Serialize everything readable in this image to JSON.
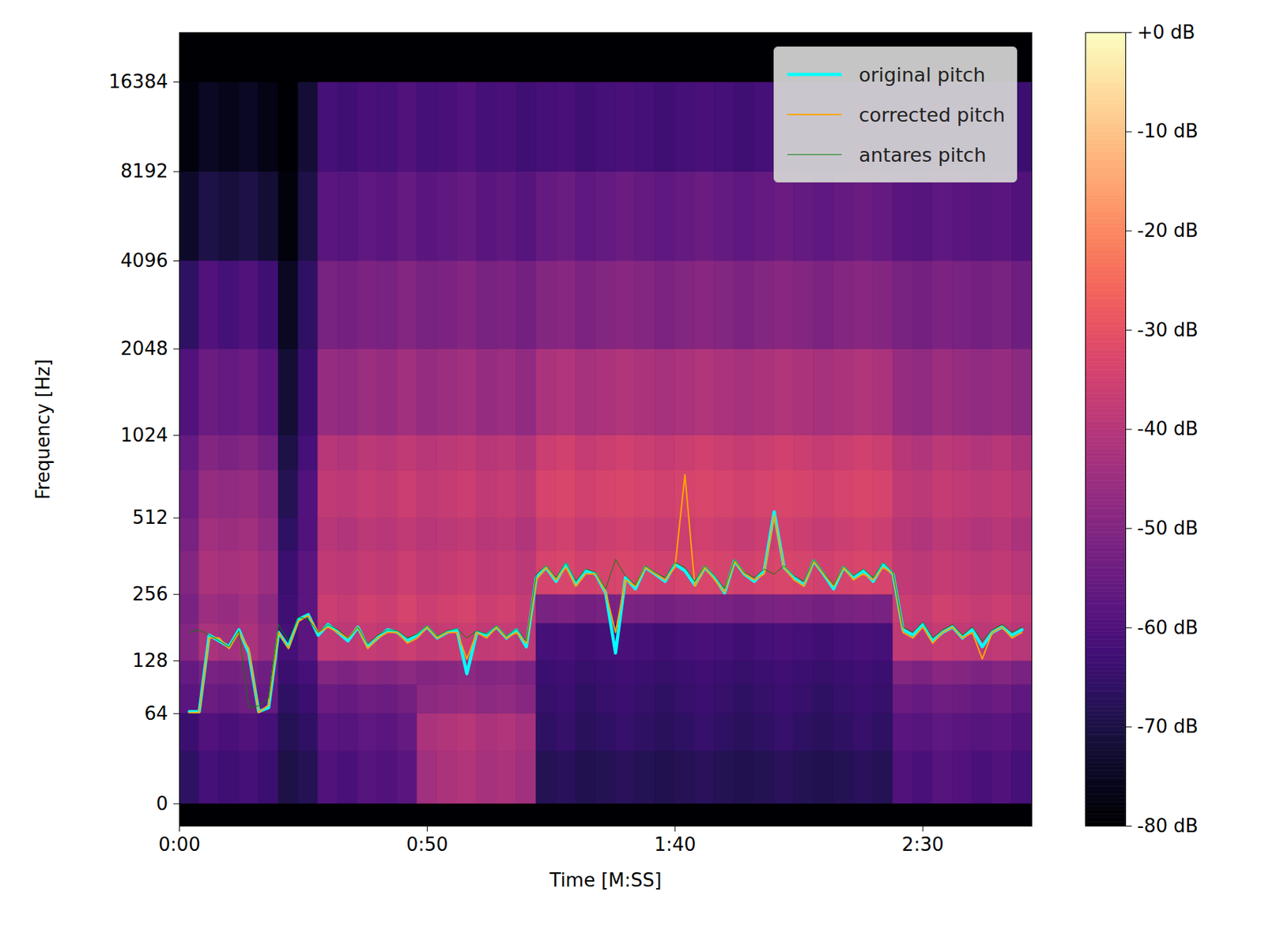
{
  "chart_data": {
    "type": "spectrogram",
    "xlabel": "Time [M:SS]",
    "ylabel": "Frequency [Hz]",
    "xlim": [
      0,
      172
    ],
    "xticks": [
      {
        "value": 0,
        "label": "0:00"
      },
      {
        "value": 50,
        "label": "0:50"
      },
      {
        "value": 100,
        "label": "1:40"
      },
      {
        "value": 150,
        "label": "2:30"
      }
    ],
    "ylim": [
      -12,
      24000
    ],
    "yticks": [
      0,
      64,
      128,
      256,
      512,
      1024,
      2048,
      4096,
      8192,
      16384
    ],
    "log": "y",
    "legend": "upper right",
    "spectrogram": {
      "time_edges": [
        0,
        4,
        8,
        12,
        16,
        20,
        24,
        28,
        32,
        36,
        40,
        44,
        48,
        52,
        56,
        60,
        64,
        68,
        72,
        76,
        80,
        84,
        88,
        92,
        96,
        100,
        104,
        108,
        112,
        116,
        120,
        124,
        128,
        132,
        136,
        140,
        144,
        148,
        152,
        156,
        160,
        164,
        168,
        172
      ],
      "freq_edges": [
        0,
        32,
        64,
        96,
        128,
        192,
        256,
        384,
        512,
        768,
        1024,
        2048,
        4096,
        8192,
        16384,
        24000
      ],
      "db": [
        [
          -66,
          -62,
          -63,
          -62,
          -64,
          -70,
          -68,
          -60,
          -61,
          -59,
          -60,
          -58,
          -44,
          -42,
          -41,
          -43,
          -42,
          -44,
          -68,
          -67,
          -69,
          -68,
          -67,
          -68,
          -69,
          -68,
          -67,
          -68,
          -69,
          -68,
          -67,
          -68,
          -69,
          -68,
          -67,
          -68,
          -60,
          -61,
          -59,
          -60,
          -61,
          -60,
          -62
        ],
        [
          -64,
          -60,
          -61,
          -60,
          -62,
          -68,
          -66,
          -58,
          -59,
          -57,
          -58,
          -56,
          -42,
          -41,
          -40,
          -42,
          -41,
          -43,
          -66,
          -65,
          -67,
          -66,
          -65,
          -66,
          -67,
          -66,
          -65,
          -66,
          -67,
          -66,
          -65,
          -66,
          -67,
          -66,
          -65,
          -66,
          -58,
          -59,
          -57,
          -58,
          -59,
          -58,
          -60
        ],
        [
          -58,
          -55,
          -56,
          -54,
          -56,
          -66,
          -64,
          -55,
          -56,
          -54,
          -55,
          -53,
          -48,
          -47,
          -46,
          -48,
          -47,
          -49,
          -65,
          -64,
          -66,
          -65,
          -64,
          -65,
          -66,
          -65,
          -64,
          -65,
          -66,
          -65,
          -64,
          -65,
          -66,
          -65,
          -64,
          -65,
          -55,
          -56,
          -54,
          -55,
          -56,
          -55,
          -57
        ],
        [
          -56,
          -52,
          -53,
          -52,
          -54,
          -64,
          -62,
          -50,
          -51,
          -49,
          -50,
          -48,
          -50,
          -49,
          -48,
          -50,
          -49,
          -51,
          -64,
          -63,
          -65,
          -64,
          -63,
          -64,
          -65,
          -64,
          -63,
          -64,
          -65,
          -64,
          -63,
          -64,
          -65,
          -64,
          -63,
          -64,
          -50,
          -51,
          -49,
          -50,
          -51,
          -50,
          -52
        ],
        [
          -50,
          -42,
          -44,
          -42,
          -46,
          -62,
          -58,
          -38,
          -39,
          -37,
          -38,
          -36,
          -38,
          -37,
          -36,
          -38,
          -37,
          -39,
          -62,
          -61,
          -63,
          -62,
          -61,
          -62,
          -63,
          -62,
          -61,
          -62,
          -63,
          -62,
          -61,
          -62,
          -63,
          -62,
          -61,
          -62,
          -38,
          -39,
          -37,
          -38,
          -39,
          -38,
          -40
        ],
        [
          -52,
          -45,
          -46,
          -44,
          -48,
          -63,
          -58,
          -36,
          -37,
          -35,
          -36,
          -34,
          -36,
          -35,
          -34,
          -36,
          -35,
          -37,
          -52,
          -51,
          -53,
          -52,
          -51,
          -52,
          -53,
          -52,
          -51,
          -52,
          -53,
          -52,
          -51,
          -52,
          -53,
          -52,
          -51,
          -52,
          -36,
          -37,
          -35,
          -36,
          -37,
          -36,
          -38
        ],
        [
          -50,
          -42,
          -43,
          -42,
          -45,
          -64,
          -58,
          -38,
          -39,
          -37,
          -38,
          -36,
          -38,
          -37,
          -36,
          -38,
          -37,
          -39,
          -34,
          -33,
          -35,
          -34,
          -33,
          -34,
          -35,
          -34,
          -33,
          -34,
          -35,
          -34,
          -33,
          -34,
          -35,
          -34,
          -33,
          -34,
          -38,
          -39,
          -37,
          -38,
          -39,
          -38,
          -40
        ],
        [
          -52,
          -44,
          -45,
          -44,
          -47,
          -66,
          -60,
          -40,
          -41,
          -39,
          -40,
          -38,
          -40,
          -39,
          -38,
          -40,
          -39,
          -41,
          -36,
          -35,
          -37,
          -36,
          -35,
          -36,
          -37,
          -36,
          -35,
          -36,
          -37,
          -36,
          -35,
          -36,
          -37,
          -36,
          -35,
          -36,
          -40,
          -41,
          -39,
          -40,
          -41,
          -40,
          -42
        ],
        [
          -54,
          -46,
          -47,
          -46,
          -49,
          -68,
          -60,
          -38,
          -39,
          -37,
          -38,
          -36,
          -38,
          -37,
          -36,
          -38,
          -37,
          -39,
          -34,
          -33,
          -35,
          -34,
          -33,
          -34,
          -35,
          -34,
          -33,
          -34,
          -35,
          -34,
          -33,
          -34,
          -35,
          -34,
          -33,
          -34,
          -38,
          -39,
          -37,
          -38,
          -39,
          -38,
          -40
        ],
        [
          -56,
          -50,
          -51,
          -50,
          -53,
          -70,
          -62,
          -40,
          -41,
          -39,
          -40,
          -38,
          -40,
          -39,
          -38,
          -40,
          -39,
          -41,
          -36,
          -35,
          -37,
          -36,
          -35,
          -36,
          -37,
          -36,
          -35,
          -36,
          -37,
          -36,
          -35,
          -36,
          -37,
          -36,
          -35,
          -36,
          -40,
          -41,
          -39,
          -40,
          -41,
          -40,
          -42
        ],
        [
          -60,
          -55,
          -56,
          -55,
          -58,
          -72,
          -64,
          -46,
          -47,
          -45,
          -46,
          -44,
          -46,
          -45,
          -44,
          -46,
          -45,
          -47,
          -42,
          -41,
          -43,
          -42,
          -41,
          -42,
          -43,
          -42,
          -41,
          -42,
          -43,
          -42,
          -41,
          -42,
          -43,
          -42,
          -41,
          -42,
          -46,
          -47,
          -45,
          -46,
          -47,
          -46,
          -48
        ],
        [
          -66,
          -60,
          -62,
          -60,
          -63,
          -75,
          -66,
          -52,
          -53,
          -51,
          -52,
          -50,
          -52,
          -51,
          -50,
          -52,
          -51,
          -53,
          -50,
          -49,
          -51,
          -50,
          -49,
          -50,
          -51,
          -50,
          -49,
          -50,
          -51,
          -50,
          -49,
          -50,
          -51,
          -50,
          -49,
          -50,
          -52,
          -53,
          -51,
          -52,
          -53,
          -52,
          -54
        ],
        [
          -74,
          -70,
          -71,
          -70,
          -72,
          -78,
          -70,
          -58,
          -59,
          -57,
          -58,
          -56,
          -58,
          -57,
          -56,
          -58,
          -57,
          -59,
          -56,
          -55,
          -57,
          -56,
          -55,
          -56,
          -57,
          -56,
          -55,
          -56,
          -57,
          -56,
          -55,
          -56,
          -57,
          -56,
          -55,
          -56,
          -58,
          -59,
          -57,
          -58,
          -59,
          -58,
          -60
        ],
        [
          -78,
          -75,
          -76,
          -75,
          -77,
          -80,
          -72,
          -62,
          -63,
          -61,
          -62,
          -60,
          -62,
          -61,
          -60,
          -62,
          -61,
          -63,
          -62,
          -61,
          -63,
          -62,
          -61,
          -62,
          -63,
          -62,
          -61,
          -62,
          -63,
          -62,
          -61,
          -62,
          -63,
          -62,
          -61,
          -62,
          -62,
          -63,
          -61,
          -62,
          -63,
          -62,
          -64
        ],
        [
          -80,
          -80,
          -80,
          -80,
          -80,
          -80,
          -80,
          -80,
          -80,
          -80,
          -80,
          -80,
          -80,
          -80,
          -80,
          -80,
          -80,
          -80,
          -80,
          -80,
          -80,
          -80,
          -80,
          -80,
          -80,
          -80,
          -80,
          -80,
          -80,
          -80,
          -80,
          -80,
          -80,
          -80,
          -80,
          -80,
          -80,
          -80,
          -80,
          -80,
          -80,
          -80,
          -80
        ]
      ]
    },
    "colorbar": {
      "lim": [
        -80,
        0
      ],
      "ticks": [
        {
          "value": 0,
          "label": "+0 dB"
        },
        {
          "value": -10,
          "label": "-10 dB"
        },
        {
          "value": -20,
          "label": "-20 dB"
        },
        {
          "value": -30,
          "label": "-30 dB"
        },
        {
          "value": -40,
          "label": "-40 dB"
        },
        {
          "value": -50,
          "label": "-50 dB"
        },
        {
          "value": -60,
          "label": "-60 dB"
        },
        {
          "value": -70,
          "label": "-70 dB"
        },
        {
          "value": -80,
          "label": "-80 dB"
        }
      ]
    },
    "x": [
      0,
      2,
      4,
      6,
      8,
      10,
      12,
      14,
      16,
      18,
      20,
      22,
      24,
      26,
      28,
      30,
      32,
      34,
      36,
      38,
      40,
      42,
      44,
      46,
      48,
      50,
      52,
      54,
      56,
      58,
      60,
      62,
      64,
      66,
      68,
      70,
      72,
      74,
      76,
      78,
      80,
      82,
      84,
      86,
      88,
      90,
      92,
      94,
      96,
      98,
      100,
      102,
      104,
      106,
      108,
      110,
      112,
      114,
      116,
      118,
      120,
      122,
      124,
      126,
      128,
      130,
      132,
      134,
      136,
      138,
      140,
      142,
      144,
      146,
      148,
      150,
      152,
      154,
      156,
      158,
      160,
      162,
      164,
      166,
      168,
      170,
      172
    ],
    "series": [
      {
        "name": "original pitch",
        "color": "#00ffff",
        "values": [
          null,
          66,
          66,
          170,
          160,
          150,
          180,
          140,
          66,
          70,
          175,
          150,
          200,
          210,
          170,
          190,
          175,
          160,
          185,
          150,
          165,
          180,
          175,
          160,
          170,
          185,
          165,
          175,
          180,
          110,
          175,
          170,
          185,
          165,
          180,
          150,
          300,
          330,
          290,
          340,
          280,
          320,
          310,
          260,
          140,
          300,
          270,
          330,
          310,
          290,
          340,
          320,
          280,
          330,
          300,
          260,
          350,
          310,
          290,
          320,
          540,
          330,
          300,
          280,
          350,
          310,
          270,
          330,
          300,
          320,
          290,
          340,
          310,
          180,
          170,
          190,
          160,
          175,
          185,
          165,
          180,
          150,
          175,
          185,
          170,
          180,
          null
        ]
      },
      {
        "name": "corrected pitch",
        "color": "#ffa500",
        "values": [
          null,
          65,
          65,
          165,
          165,
          147,
          175,
          147,
          65,
          73,
          175,
          147,
          196,
          208,
          175,
          185,
          175,
          165,
          185,
          147,
          165,
          175,
          175,
          156,
          165,
          185,
          165,
          175,
          175,
          131,
          175,
          165,
          185,
          165,
          175,
          156,
          294,
          330,
          294,
          330,
          277,
          311,
          311,
          262,
          175,
          294,
          277,
          330,
          311,
          294,
          330,
          740,
          277,
          330,
          294,
          262,
          349,
          311,
          294,
          311,
          523,
          330,
          294,
          277,
          349,
          311,
          277,
          330,
          294,
          311,
          294,
          330,
          311,
          175,
          165,
          185,
          156,
          175,
          185,
          165,
          175,
          131,
          175,
          185,
          165,
          175,
          null
        ]
      },
      {
        "name": "antares pitch",
        "color": "#008000",
        "values": [
          null,
          175,
          180,
          170,
          160,
          150,
          178,
          70,
          72,
          80,
          190,
          160,
          205,
          200,
          175,
          190,
          180,
          165,
          185,
          155,
          170,
          180,
          178,
          165,
          172,
          188,
          168,
          178,
          182,
          165,
          178,
          172,
          188,
          168,
          182,
          160,
          310,
          335,
          300,
          345,
          290,
          325,
          315,
          270,
          355,
          305,
          280,
          335,
          315,
          300,
          345,
          330,
          290,
          335,
          305,
          270,
          355,
          315,
          300,
          325,
          310,
          335,
          305,
          290,
          355,
          315,
          280,
          335,
          305,
          325,
          300,
          345,
          315,
          185,
          175,
          195,
          165,
          180,
          190,
          170,
          185,
          160,
          180,
          190,
          175,
          185,
          null
        ]
      }
    ]
  }
}
